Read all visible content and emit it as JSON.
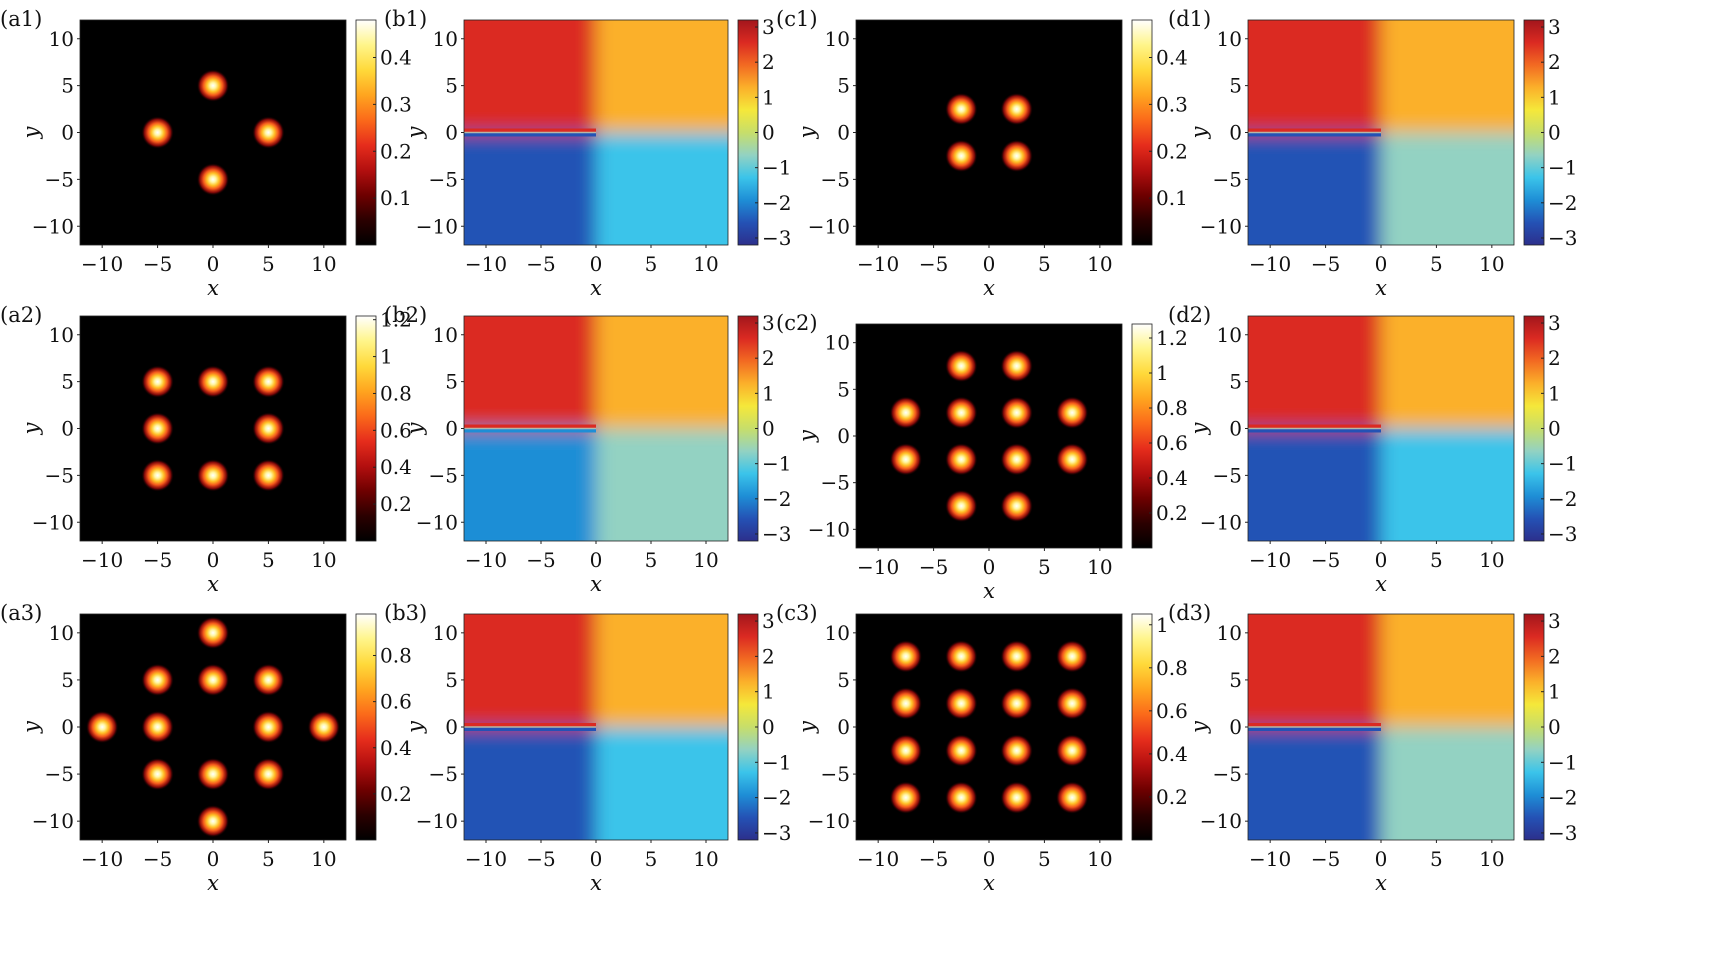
{
  "figure": {
    "axis_label_x": "x",
    "axis_label_y": "y"
  },
  "colormaps": {
    "intensity": [
      "#000000",
      "#2b0000",
      "#6e0000",
      "#b30f0f",
      "#e62d1c",
      "#fb6a1a",
      "#ffa51f",
      "#ffd93a",
      "#fff58a",
      "#ffffff"
    ],
    "phase": [
      "#2c2f8c",
      "#2452b5",
      "#1e8ed6",
      "#3bc4ea",
      "#93d2c2",
      "#c7de6a",
      "#f5e83a",
      "#fbb02a",
      "#f26a22",
      "#db2a22",
      "#a3161c"
    ]
  },
  "chart_data": [
    {
      "panel": "(a1)",
      "type": "heatmap",
      "kind": "intensity",
      "xlabel": "x",
      "ylabel": "y",
      "xlim": [
        -12,
        12
      ],
      "ylim": [
        -12,
        12
      ],
      "xticks": [
        -10,
        -5,
        0,
        5,
        10
      ],
      "xtick_labels": [
        "−10",
        "−5",
        "0",
        "5",
        "10"
      ],
      "yticks": [
        -10,
        -5,
        0,
        5,
        10
      ],
      "ytick_labels": [
        "−10",
        "−5",
        "0",
        "5",
        "10"
      ],
      "colorbar": {
        "min": 0,
        "max": 0.48,
        "ticks": [
          0.1,
          0.2,
          0.3,
          0.4
        ],
        "tick_labels": [
          "0.1",
          "0.2",
          "0.3",
          "0.4"
        ]
      },
      "spots": [
        [
          0,
          5
        ],
        [
          -5,
          0
        ],
        [
          5,
          0
        ],
        [
          0,
          -5
        ]
      ]
    },
    {
      "panel": "(b1)",
      "type": "heatmap",
      "kind": "phase",
      "xlabel": "x",
      "ylabel": "y",
      "xlim": [
        -12,
        12
      ],
      "ylim": [
        -12,
        12
      ],
      "xticks": [
        -10,
        -5,
        0,
        5,
        10
      ],
      "xtick_labels": [
        "−10",
        "−5",
        "0",
        "5",
        "10"
      ],
      "yticks": [
        -10,
        -5,
        0,
        5,
        10
      ],
      "ytick_labels": [
        "−10",
        "−5",
        "0",
        "5",
        "10"
      ],
      "colorbar": {
        "min": -3.2,
        "max": 3.2,
        "ticks": [
          -3,
          -2,
          -1,
          0,
          1,
          2,
          3
        ],
        "tick_labels": [
          "−3",
          "−2",
          "−1",
          "0",
          "1",
          "2",
          "3"
        ]
      },
      "phase_quadrants": {
        "top_left": 2.6,
        "top_right": 1.0,
        "bottom_left": -2.4,
        "bottom_right": -1.2
      }
    },
    {
      "panel": "(c1)",
      "type": "heatmap",
      "kind": "intensity",
      "xlabel": "x",
      "ylabel": "y",
      "xlim": [
        -12,
        12
      ],
      "ylim": [
        -12,
        12
      ],
      "xticks": [
        -10,
        -5,
        0,
        5,
        10
      ],
      "xtick_labels": [
        "−10",
        "−5",
        "0",
        "5",
        "10"
      ],
      "yticks": [
        -10,
        -5,
        0,
        5,
        10
      ],
      "ytick_labels": [
        "−10",
        "−5",
        "0",
        "5",
        "10"
      ],
      "colorbar": {
        "min": 0,
        "max": 0.48,
        "ticks": [
          0.1,
          0.2,
          0.3,
          0.4
        ],
        "tick_labels": [
          "0.1",
          "0.2",
          "0.3",
          "0.4"
        ]
      },
      "spots": [
        [
          -2.5,
          2.5
        ],
        [
          2.5,
          2.5
        ],
        [
          -2.5,
          -2.5
        ],
        [
          2.5,
          -2.5
        ]
      ]
    },
    {
      "panel": "(d1)",
      "type": "heatmap",
      "kind": "phase",
      "xlabel": "x",
      "ylabel": "y",
      "xlim": [
        -12,
        12
      ],
      "ylim": [
        -12,
        12
      ],
      "xticks": [
        -10,
        -5,
        0,
        5,
        10
      ],
      "xtick_labels": [
        "−10",
        "−5",
        "0",
        "5",
        "10"
      ],
      "yticks": [
        -10,
        -5,
        0,
        5,
        10
      ],
      "ytick_labels": [
        "−10",
        "−5",
        "0",
        "5",
        "10"
      ],
      "colorbar": {
        "min": -3.2,
        "max": 3.2,
        "ticks": [
          -3,
          -2,
          -1,
          0,
          1,
          2,
          3
        ],
        "tick_labels": [
          "−3",
          "−2",
          "−1",
          "0",
          "1",
          "2",
          "3"
        ]
      },
      "phase_quadrants": {
        "top_left": 2.4,
        "top_right": 1.1,
        "bottom_left": -2.3,
        "bottom_right": -0.9
      }
    },
    {
      "panel": "(a2)",
      "type": "heatmap",
      "kind": "intensity",
      "xlabel": "x",
      "ylabel": "y",
      "xlim": [
        -12,
        12
      ],
      "ylim": [
        -12,
        12
      ],
      "xticks": [
        -10,
        -5,
        0,
        5,
        10
      ],
      "xtick_labels": [
        "−10",
        "−5",
        "0",
        "5",
        "10"
      ],
      "yticks": [
        -10,
        -5,
        0,
        5,
        10
      ],
      "ytick_labels": [
        "−10",
        "−5",
        "0",
        "5",
        "10"
      ],
      "colorbar": {
        "min": 0,
        "max": 1.22,
        "ticks": [
          0.2,
          0.4,
          0.6,
          0.8,
          1,
          1.2
        ],
        "tick_labels": [
          "0.2",
          "0.4",
          "0.6",
          "0.8",
          "1",
          "1.2"
        ]
      },
      "spots": [
        [
          -5,
          5
        ],
        [
          0,
          5
        ],
        [
          5,
          5
        ],
        [
          -5,
          0
        ],
        [
          5,
          0
        ],
        [
          -5,
          -5
        ],
        [
          0,
          -5
        ],
        [
          5,
          -5
        ]
      ]
    },
    {
      "panel": "(b2)",
      "type": "heatmap",
      "kind": "phase",
      "xlabel": "x",
      "ylabel": "y",
      "xlim": [
        -12,
        12
      ],
      "ylim": [
        -12,
        12
      ],
      "xticks": [
        -10,
        -5,
        0,
        5,
        10
      ],
      "xtick_labels": [
        "−10",
        "−5",
        "0",
        "5",
        "10"
      ],
      "yticks": [
        -10,
        -5,
        0,
        5,
        10
      ],
      "ytick_labels": [
        "−10",
        "−5",
        "0",
        "5",
        "10"
      ],
      "colorbar": {
        "min": -3.2,
        "max": 3.2,
        "ticks": [
          -3,
          -2,
          -1,
          0,
          1,
          2,
          3
        ],
        "tick_labels": [
          "−3",
          "−2",
          "−1",
          "0",
          "1",
          "2",
          "3"
        ]
      },
      "phase_quadrants": {
        "top_left": 2.4,
        "top_right": 1.1,
        "bottom_left": -2.2,
        "bottom_right": -0.9
      }
    },
    {
      "panel": "(c2)",
      "type": "heatmap",
      "kind": "intensity",
      "xlabel": "x",
      "ylabel": "y",
      "xlim": [
        -12,
        12
      ],
      "ylim": [
        -12,
        12
      ],
      "xticks": [
        -10,
        -5,
        0,
        5,
        10
      ],
      "xtick_labels": [
        "−10",
        "−5",
        "0",
        "5",
        "10"
      ],
      "yticks": [
        -10,
        -5,
        0,
        5,
        10
      ],
      "ytick_labels": [
        "−10",
        "−5",
        "0",
        "5",
        "10"
      ],
      "colorbar": {
        "min": 0,
        "max": 1.28,
        "ticks": [
          0.2,
          0.4,
          0.6,
          0.8,
          1,
          1.2
        ],
        "tick_labels": [
          "0.2",
          "0.4",
          "0.6",
          "0.8",
          "1",
          "1.2"
        ]
      },
      "spots": [
        [
          -2.5,
          7.5
        ],
        [
          2.5,
          7.5
        ],
        [
          -7.5,
          2.5
        ],
        [
          -2.5,
          2.5
        ],
        [
          2.5,
          2.5
        ],
        [
          7.5,
          2.5
        ],
        [
          -7.5,
          -2.5
        ],
        [
          -2.5,
          -2.5
        ],
        [
          2.5,
          -2.5
        ],
        [
          7.5,
          -2.5
        ],
        [
          -2.5,
          -7.5
        ],
        [
          2.5,
          -7.5
        ]
      ]
    },
    {
      "panel": "(d2)",
      "type": "heatmap",
      "kind": "phase",
      "xlabel": "x",
      "ylabel": "y",
      "xlim": [
        -12,
        12
      ],
      "ylim": [
        -12,
        12
      ],
      "xticks": [
        -10,
        -5,
        0,
        5,
        10
      ],
      "xtick_labels": [
        "−10",
        "−5",
        "0",
        "5",
        "10"
      ],
      "yticks": [
        -10,
        -5,
        0,
        5,
        10
      ],
      "ytick_labels": [
        "−10",
        "−5",
        "0",
        "5",
        "10"
      ],
      "colorbar": {
        "min": -3.2,
        "max": 3.2,
        "ticks": [
          -3,
          -2,
          -1,
          0,
          1,
          2,
          3
        ],
        "tick_labels": [
          "−3",
          "−2",
          "−1",
          "0",
          "1",
          "2",
          "3"
        ]
      },
      "phase_quadrants": {
        "top_left": 2.5,
        "top_right": 1.2,
        "bottom_left": -2.3,
        "bottom_right": -1.0
      }
    },
    {
      "panel": "(a3)",
      "type": "heatmap",
      "kind": "intensity",
      "xlabel": "x",
      "ylabel": "y",
      "xlim": [
        -12,
        12
      ],
      "ylim": [
        -12,
        12
      ],
      "xticks": [
        -10,
        -5,
        0,
        5,
        10
      ],
      "xtick_labels": [
        "−10",
        "−5",
        "0",
        "5",
        "10"
      ],
      "yticks": [
        -10,
        -5,
        0,
        5,
        10
      ],
      "ytick_labels": [
        "−10",
        "−5",
        "0",
        "5",
        "10"
      ],
      "colorbar": {
        "min": 0,
        "max": 0.98,
        "ticks": [
          0.2,
          0.4,
          0.6,
          0.8
        ],
        "tick_labels": [
          "0.2",
          "0.4",
          "0.6",
          "0.8"
        ]
      },
      "spots": [
        [
          0,
          10
        ],
        [
          -5,
          5
        ],
        [
          0,
          5
        ],
        [
          5,
          5
        ],
        [
          -10,
          0
        ],
        [
          -5,
          0
        ],
        [
          5,
          0
        ],
        [
          10,
          0
        ],
        [
          -5,
          -5
        ],
        [
          0,
          -5
        ],
        [
          5,
          -5
        ],
        [
          0,
          -10
        ]
      ]
    },
    {
      "panel": "(b3)",
      "type": "heatmap",
      "kind": "phase",
      "xlabel": "x",
      "ylabel": "y",
      "xlim": [
        -12,
        12
      ],
      "ylim": [
        -12,
        12
      ],
      "xticks": [
        -10,
        -5,
        0,
        5,
        10
      ],
      "xtick_labels": [
        "−10",
        "−5",
        "0",
        "5",
        "10"
      ],
      "yticks": [
        -10,
        -5,
        0,
        5,
        10
      ],
      "ytick_labels": [
        "−10",
        "−5",
        "0",
        "5",
        "10"
      ],
      "colorbar": {
        "min": -3.2,
        "max": 3.2,
        "ticks": [
          -3,
          -2,
          -1,
          0,
          1,
          2,
          3
        ],
        "tick_labels": [
          "−3",
          "−2",
          "−1",
          "0",
          "1",
          "2",
          "3"
        ]
      },
      "phase_quadrants": {
        "top_left": 2.6,
        "top_right": 1.0,
        "bottom_left": -2.4,
        "bottom_right": -1.2
      }
    },
    {
      "panel": "(c3)",
      "type": "heatmap",
      "kind": "intensity",
      "xlabel": "x",
      "ylabel": "y",
      "xlim": [
        -12,
        12
      ],
      "ylim": [
        -12,
        12
      ],
      "xticks": [
        -10,
        -5,
        0,
        5,
        10
      ],
      "xtick_labels": [
        "−10",
        "−5",
        "0",
        "5",
        "10"
      ],
      "yticks": [
        -10,
        -5,
        0,
        5,
        10
      ],
      "ytick_labels": [
        "−10",
        "−5",
        "0",
        "5",
        "10"
      ],
      "colorbar": {
        "min": 0,
        "max": 1.05,
        "ticks": [
          0.2,
          0.4,
          0.6,
          0.8,
          1
        ],
        "tick_labels": [
          "0.2",
          "0.4",
          "0.6",
          "0.8",
          "1"
        ]
      },
      "spots": [
        [
          -7.5,
          7.5
        ],
        [
          -2.5,
          7.5
        ],
        [
          2.5,
          7.5
        ],
        [
          7.5,
          7.5
        ],
        [
          -7.5,
          2.5
        ],
        [
          -2.5,
          2.5
        ],
        [
          2.5,
          2.5
        ],
        [
          7.5,
          2.5
        ],
        [
          -7.5,
          -2.5
        ],
        [
          -2.5,
          -2.5
        ],
        [
          2.5,
          -2.5
        ],
        [
          7.5,
          -2.5
        ],
        [
          -7.5,
          -7.5
        ],
        [
          -2.5,
          -7.5
        ],
        [
          2.5,
          -7.5
        ],
        [
          7.5,
          -7.5
        ]
      ]
    },
    {
      "panel": "(d3)",
      "type": "heatmap",
      "kind": "phase",
      "xlabel": "x",
      "ylabel": "y",
      "xlim": [
        -12,
        12
      ],
      "ylim": [
        -12,
        12
      ],
      "xticks": [
        -10,
        -5,
        0,
        5,
        10
      ],
      "xtick_labels": [
        "−10",
        "−5",
        "0",
        "5",
        "10"
      ],
      "yticks": [
        -10,
        -5,
        0,
        5,
        10
      ],
      "ytick_labels": [
        "−10",
        "−5",
        "0",
        "5",
        "10"
      ],
      "colorbar": {
        "min": -3.2,
        "max": 3.2,
        "ticks": [
          -3,
          -2,
          -1,
          0,
          1,
          2,
          3
        ],
        "tick_labels": [
          "−3",
          "−2",
          "−1",
          "0",
          "1",
          "2",
          "3"
        ]
      },
      "phase_quadrants": {
        "top_left": 2.5,
        "top_right": 1.2,
        "bottom_left": -2.3,
        "bottom_right": -0.9
      }
    }
  ]
}
